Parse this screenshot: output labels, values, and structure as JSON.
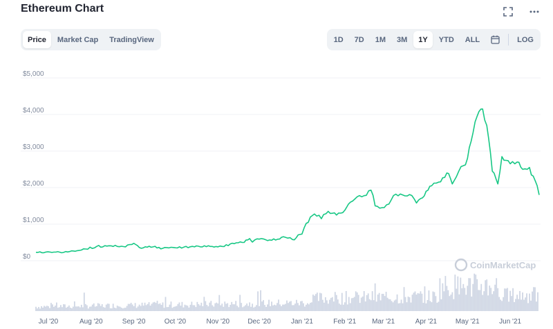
{
  "header": {
    "title": "Ethereum Chart",
    "fullscreen_icon": "expand-icon",
    "more_icon": "more-dots-icon"
  },
  "view_tabs": [
    {
      "label": "Price",
      "active": true
    },
    {
      "label": "Market Cap",
      "active": false
    },
    {
      "label": "TradingView",
      "active": false
    }
  ],
  "range_tabs": [
    {
      "label": "1D",
      "active": false
    },
    {
      "label": "7D",
      "active": false
    },
    {
      "label": "1M",
      "active": false
    },
    {
      "label": "3M",
      "active": false
    },
    {
      "label": "1Y",
      "active": true
    },
    {
      "label": "YTD",
      "active": false
    },
    {
      "label": "ALL",
      "active": false
    }
  ],
  "calendar_icon": "calendar-icon",
  "log_label": "LOG",
  "watermark": "CoinMarketCap",
  "colors": {
    "line": "#16c784",
    "volume": "#cfd6e4",
    "grid": "#eff2f5",
    "accent_bg": "#eff2f5"
  },
  "chart_data": {
    "type": "line",
    "title": "",
    "xlabel": "",
    "ylabel": "",
    "ylim": [
      0,
      5000
    ],
    "y_ticks": [
      "$0",
      "$1,000",
      "$2,000",
      "$3,000",
      "$4,000",
      "$5,000"
    ],
    "y_tick_values": [
      0,
      1000,
      2000,
      3000,
      4000,
      5000
    ],
    "x_ticks": [
      "Jul '20",
      "Aug '20",
      "Sep '20",
      "Oct '20",
      "Nov '20",
      "Dec '20",
      "Jan '21",
      "Feb '21",
      "Mar '21",
      "Apr '21",
      "May '21",
      "Jun '21"
    ],
    "x_tick_dates": [
      "2020-07-01",
      "2020-08-01",
      "2020-09-01",
      "2020-10-01",
      "2020-11-01",
      "2020-12-01",
      "2021-01-01",
      "2021-02-01",
      "2021-03-01",
      "2021-04-01",
      "2021-05-01",
      "2021-06-01"
    ],
    "grid": true,
    "series": [
      {
        "values_date": [
          "2020-06-22",
          "2020-07-05",
          "2020-07-15",
          "2020-07-22",
          "2020-07-28",
          "2020-08-05",
          "2020-08-14",
          "2020-08-20",
          "2020-08-26",
          "2020-09-01",
          "2020-09-05",
          "2020-09-15",
          "2020-09-22",
          "2020-10-01",
          "2020-10-15",
          "2020-10-25",
          "2020-11-01",
          "2020-11-10",
          "2020-11-20",
          "2020-11-24",
          "2020-11-26",
          "2020-12-01",
          "2020-12-10",
          "2020-12-20",
          "2020-12-25",
          "2021-01-01",
          "2021-01-04",
          "2021-01-10",
          "2021-01-15",
          "2021-01-20",
          "2021-01-26",
          "2021-02-01",
          "2021-02-05",
          "2021-02-10",
          "2021-02-15",
          "2021-02-20",
          "2021-02-23",
          "2021-02-28",
          "2021-03-05",
          "2021-03-10",
          "2021-03-15",
          "2021-03-20",
          "2021-03-25",
          "2021-03-28",
          "2021-04-01",
          "2021-04-05",
          "2021-04-10",
          "2021-04-16",
          "2021-04-20",
          "2021-04-23",
          "2021-04-28",
          "2021-05-01",
          "2021-05-05",
          "2021-05-08",
          "2021-05-12",
          "2021-05-15",
          "2021-05-19",
          "2021-05-23",
          "2021-05-26",
          "2021-06-01",
          "2021-06-06",
          "2021-06-10",
          "2021-06-15",
          "2021-06-19",
          "2021-06-22"
        ],
        "values": [
          230,
          235,
          240,
          275,
          320,
          390,
          410,
          390,
          380,
          475,
          360,
          380,
          340,
          355,
          380,
          410,
          380,
          460,
          500,
          605,
          510,
          590,
          560,
          640,
          580,
          730,
          1020,
          1280,
          1150,
          1350,
          1250,
          1380,
          1600,
          1750,
          1780,
          1930,
          1500,
          1450,
          1550,
          1820,
          1800,
          1810,
          1580,
          1700,
          1900,
          2050,
          2150,
          2400,
          2100,
          2300,
          2600,
          2800,
          3500,
          3950,
          4150,
          3700,
          2450,
          2100,
          2850,
          2650,
          2700,
          2500,
          2550,
          2200,
          1800
        ]
      }
    ],
    "volume_series": {
      "note": "relative trading volume bars, unitless",
      "start": "2020-06-22",
      "end": "2021-06-22"
    }
  }
}
